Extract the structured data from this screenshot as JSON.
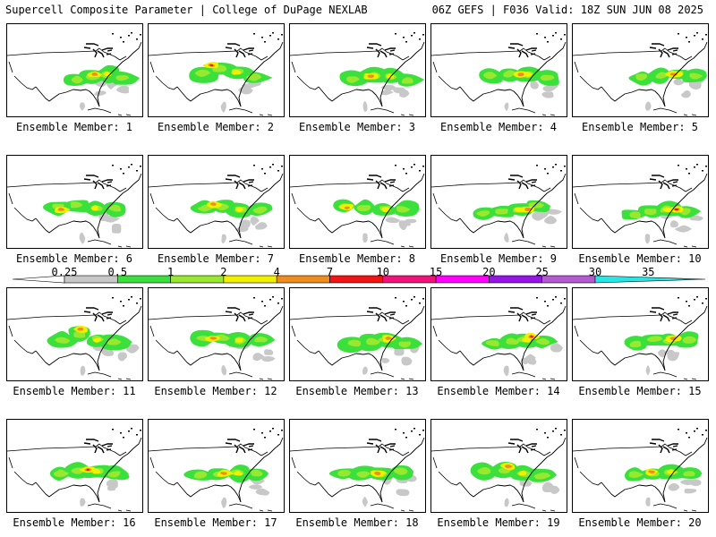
{
  "header": {
    "left": "Supercell Composite Parameter | College of DuPage NEXLAB",
    "right": "06Z GEFS | F036 Valid: 18Z SUN JUN 08 2025"
  },
  "panels": [
    {
      "label": "Ensemble Member: 1"
    },
    {
      "label": "Ensemble Member: 2"
    },
    {
      "label": "Ensemble Member: 3"
    },
    {
      "label": "Ensemble Member: 4"
    },
    {
      "label": "Ensemble Member: 5"
    },
    {
      "label": "Ensemble Member: 6"
    },
    {
      "label": "Ensemble Member: 7"
    },
    {
      "label": "Ensemble Member: 8"
    },
    {
      "label": "Ensemble Member: 9"
    },
    {
      "label": "Ensemble Member: 10"
    },
    {
      "label": "Ensemble Member: 11"
    },
    {
      "label": "Ensemble Member: 12"
    },
    {
      "label": "Ensemble Member: 13"
    },
    {
      "label": "Ensemble Member: 14"
    },
    {
      "label": "Ensemble Member: 15"
    },
    {
      "label": "Ensemble Member: 16"
    },
    {
      "label": "Ensemble Member: 17"
    },
    {
      "label": "Ensemble Member: 18"
    },
    {
      "label": "Ensemble Member: 19"
    },
    {
      "label": "Ensemble Member: 20"
    }
  ],
  "legend": {
    "ticks": [
      "0.25",
      "0.5",
      "1",
      "2",
      "4",
      "7",
      "10",
      "15",
      "20",
      "25",
      "30",
      "35"
    ],
    "colors": [
      "#ffffff",
      "#c8c8c8",
      "#3ce03c",
      "#98e830",
      "#f0f000",
      "#f08c1e",
      "#f01414",
      "#f0147a",
      "#ff00ff",
      "#9614e6",
      "#b45ad2",
      "#28e6e6"
    ]
  },
  "map": {
    "field_colors": {
      "gray": "#c8c8c8",
      "green": "#3ce03c",
      "lime": "#98e830",
      "yellow": "#f0f000",
      "orange": "#f08c1e",
      "red": "#f01414"
    }
  }
}
